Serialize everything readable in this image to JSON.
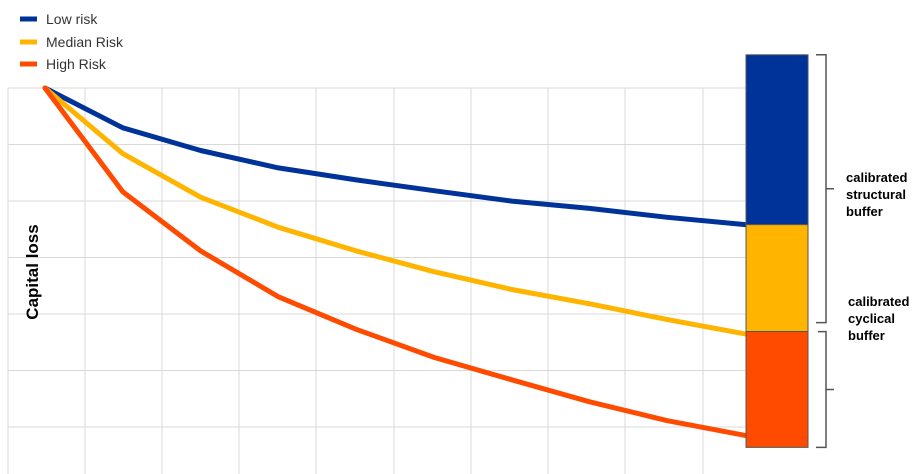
{
  "chart_data": {
    "type": "line",
    "title": "",
    "xlabel": "",
    "ylabel": "Capital loss",
    "grid": true,
    "legend_position": "top-left",
    "x": [
      0,
      1,
      2,
      3,
      4,
      5,
      6,
      7,
      8,
      9
    ],
    "ylim": [
      0,
      1
    ],
    "series": [
      {
        "name": "Low risk",
        "color": "#003399",
        "values": [
          1.0,
          0.897,
          0.838,
          0.793,
          0.762,
          0.734,
          0.707,
          0.688,
          0.665,
          0.646
        ]
      },
      {
        "name": "Median Risk",
        "color": "#FFB400",
        "values": [
          1.0,
          0.83,
          0.717,
          0.639,
          0.578,
          0.524,
          0.478,
          0.441,
          0.4,
          0.363
        ]
      },
      {
        "name": "High Risk",
        "color": "#FF4B00",
        "values": [
          1.0,
          0.731,
          0.578,
          0.459,
          0.375,
          0.302,
          0.244,
          0.187,
          0.138,
          0.1
        ]
      }
    ],
    "stacked_bar": {
      "segments": [
        {
          "name": "structural",
          "color": "#003399",
          "from": 1.086,
          "to": 0.646
        },
        {
          "name": "median",
          "color": "#FFB400",
          "from": 0.646,
          "to": 0.369
        },
        {
          "name": "cyclical",
          "color": "#FF4B00",
          "from": 0.369,
          "to": 0.069
        }
      ]
    },
    "annotations": [
      {
        "lines": [
          "calibrated",
          "structural",
          "buffer"
        ]
      },
      {
        "lines": [
          "calibrated",
          "cyclical",
          "buffer"
        ]
      }
    ]
  }
}
